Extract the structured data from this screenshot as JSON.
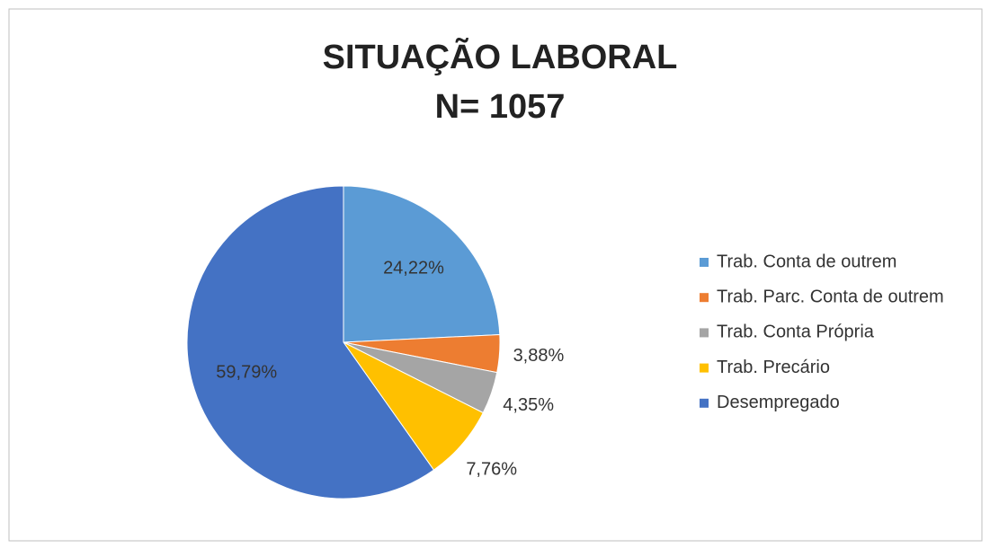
{
  "chart_data": {
    "type": "pie",
    "title": "SITUAÇÃO LABORAL",
    "subtitle": "N= 1057",
    "categories": [
      "Trab. Conta de outrem",
      "Trab. Parc. Conta de outrem",
      "Trab. Conta Própria",
      "Trab. Precário",
      "Desempregado"
    ],
    "values": [
      24.22,
      3.88,
      4.35,
      7.76,
      59.79
    ],
    "value_labels": [
      "24,22%",
      "3,88%",
      "4,35%",
      "7,76%",
      "59,79%"
    ],
    "colors": [
      "#5b9bd5",
      "#ed7d31",
      "#a5a5a5",
      "#ffc000",
      "#4472c4"
    ],
    "legend": "right"
  }
}
